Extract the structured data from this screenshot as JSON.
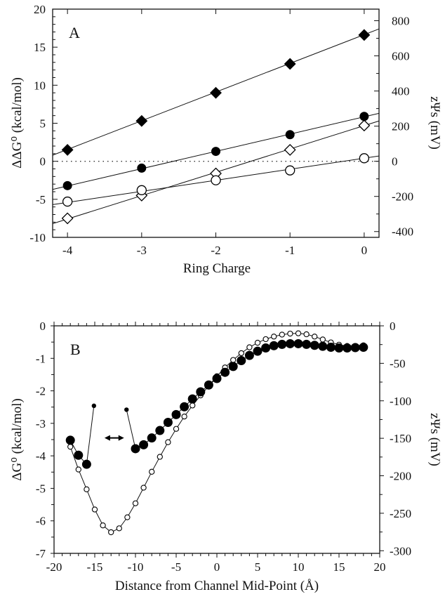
{
  "chart_data": [
    {
      "type": "scatter",
      "panel_label": "A",
      "title": "",
      "xlabel": "Ring Charge",
      "ylabel": "ΔΔG⁰ (kcal/mol)",
      "ylabel_right": "zΨs (mV)",
      "xlim": [
        -4.2,
        0.2
      ],
      "ylim": [
        -10,
        20
      ],
      "ylim_right": [
        -433,
        866
      ],
      "x_ticks": [
        -4,
        -3,
        -2,
        -1,
        0
      ],
      "x_tick_labels": [
        "-4",
        "-3",
        "-2",
        "-1",
        "0"
      ],
      "y_ticks": [
        -10,
        -5,
        0,
        5,
        10,
        15,
        20
      ],
      "y_tick_labels": [
        "-10",
        "-5",
        "0",
        "5",
        "10",
        "15",
        "20"
      ],
      "y_right_ticks": [
        -400,
        -200,
        0,
        200,
        400,
        600,
        800
      ],
      "y_right_tick_labels": [
        "-400",
        "-200",
        "0",
        "200",
        "400",
        "600",
        "800"
      ],
      "grid": false,
      "reference_line": {
        "y": 0,
        "style": "dotted"
      },
      "x": [
        -4,
        -3,
        -2,
        -1,
        0
      ],
      "series": [
        {
          "name": "filled diamond",
          "marker": "diamond-filled",
          "values": [
            1.5,
            5.3,
            9.0,
            12.8,
            16.6
          ],
          "fit": [
            0.8,
            17.4
          ]
        },
        {
          "name": "filled circle",
          "marker": "circle-filled",
          "values": [
            -3.2,
            -0.9,
            1.3,
            3.5,
            5.9
          ],
          "fit": [
            -3.7,
            6.3
          ]
        },
        {
          "name": "open diamond",
          "marker": "diamond-open",
          "values": [
            -7.5,
            -4.5,
            -1.6,
            1.5,
            4.7
          ],
          "fit": [
            -8.2,
            5.3
          ]
        },
        {
          "name": "open circle",
          "marker": "circle-open",
          "values": [
            -5.3,
            -3.8,
            -2.5,
            -1.2,
            0.4
          ],
          "fit": [
            -5.7,
            0.7
          ]
        }
      ]
    },
    {
      "type": "line",
      "panel_label": "B",
      "title": "",
      "xlabel": "Distance from Channel Mid-Point (Å)",
      "ylabel": "ΔG⁰ (kcal/mol)",
      "ylabel_right": "zΨs (mV)",
      "xlim": [
        -20,
        20
      ],
      "ylim": [
        -7,
        0
      ],
      "ylim_right": [
        -303.5,
        0
      ],
      "x_ticks": [
        -20,
        -15,
        -10,
        -5,
        0,
        5,
        10,
        15,
        20
      ],
      "x_tick_labels": [
        "-20",
        "-15",
        "-10",
        "-5",
        "0",
        "5",
        "10",
        "15",
        "20"
      ],
      "y_ticks": [
        -7,
        -6,
        -5,
        -4,
        -3,
        -2,
        -1,
        0
      ],
      "y_tick_labels": [
        "-7",
        "-6",
        "-5",
        "-4",
        "-3",
        "-2",
        "-1",
        "0"
      ],
      "y_right_ticks": [
        -300,
        -250,
        -200,
        -150,
        -100,
        -50,
        0
      ],
      "y_right_tick_labels": [
        "-300",
        "-250",
        "-200",
        "-150",
        "-100",
        "-50",
        "0"
      ],
      "grid": false,
      "annotation": "double-headed arrow between the two filled-circle segments (approx. x = -14 to -11)",
      "series": [
        {
          "name": "open circles",
          "marker": "circle-open-small",
          "x": [
            -18,
            -17,
            -16,
            -15,
            -14,
            -13,
            -12,
            -11,
            -10,
            -9,
            -8,
            -7,
            -6,
            -5,
            -4,
            -3,
            -2,
            -1,
            0,
            1,
            2,
            3,
            4,
            5,
            6,
            7,
            8,
            9,
            10,
            11,
            12,
            13,
            14,
            15,
            16,
            17,
            18
          ],
          "values": [
            -3.72,
            -4.42,
            -5.03,
            -5.65,
            -6.14,
            -6.35,
            -6.23,
            -5.89,
            -5.46,
            -4.98,
            -4.49,
            -4.03,
            -3.58,
            -3.17,
            -2.79,
            -2.45,
            -2.14,
            -1.85,
            -1.55,
            -1.28,
            -1.05,
            -0.84,
            -0.66,
            -0.52,
            -0.41,
            -0.33,
            -0.27,
            -0.24,
            -0.23,
            -0.26,
            -0.33,
            -0.42,
            -0.51,
            -0.58,
            -0.62,
            -0.62,
            -0.6
          ]
        },
        {
          "name": "filled circles (left segment)",
          "marker": "circle-filled",
          "x": [
            -18,
            -17,
            -16,
            -15.1
          ],
          "values": [
            -3.52,
            -3.98,
            -4.26,
            -2.46
          ]
        },
        {
          "name": "filled circles (right segment)",
          "marker": "circle-filled",
          "x": [
            -11.1,
            -10,
            -9,
            -8,
            -7,
            -6,
            -5,
            -4,
            -3,
            -2,
            -1,
            0,
            1,
            2,
            3,
            4,
            5,
            6,
            7,
            8,
            9,
            10,
            11,
            12,
            13,
            14,
            15,
            16,
            17,
            18
          ],
          "values": [
            -2.58,
            -3.78,
            -3.66,
            -3.45,
            -3.22,
            -2.97,
            -2.73,
            -2.49,
            -2.25,
            -2.03,
            -1.82,
            -1.62,
            -1.43,
            -1.25,
            -1.07,
            -0.91,
            -0.78,
            -0.68,
            -0.61,
            -0.57,
            -0.55,
            -0.55,
            -0.57,
            -0.6,
            -0.63,
            -0.66,
            -0.68,
            -0.68,
            -0.67,
            -0.66
          ]
        }
      ]
    }
  ]
}
